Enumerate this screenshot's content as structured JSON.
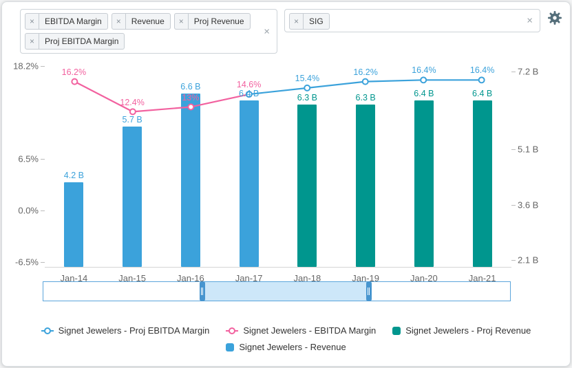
{
  "toolbar": {
    "metric_tags": [
      "EBITDA Margin",
      "Revenue",
      "Proj Revenue",
      "Proj EBITDA Margin"
    ],
    "ticker_tags": [
      "SIG"
    ],
    "tag_remove_icon": "×",
    "clear_icon": "×"
  },
  "chart_data": {
    "type": "combo-bar-line",
    "categories": [
      "Jan-14",
      "Jan-15",
      "Jan-16",
      "Jan-17",
      "Jan-18",
      "Jan-19",
      "Jan-20",
      "Jan-21"
    ],
    "left_axis": {
      "unit": "%",
      "labels": [
        "18.2%",
        "6.5%",
        "0.0%",
        "-6.5%"
      ],
      "values": [
        18.2,
        6.5,
        0.0,
        -6.5
      ],
      "min": -7.2,
      "max": 18.6
    },
    "right_axis": {
      "unit": "B",
      "labels": [
        "7.2 B",
        "5.1 B",
        "3.6 B",
        "2.1 B"
      ],
      "values": [
        7.2,
        5.1,
        3.6,
        2.1
      ],
      "min": 1.9,
      "max": 7.45
    },
    "series": [
      {
        "name": "Signet Jewelers - Revenue",
        "type": "bar",
        "color": "#3BA2DB",
        "start": 0,
        "values": [
          4.2,
          5.7,
          6.6,
          6.4
        ],
        "labels": [
          "4.2 B",
          "5.7 B",
          "6.6 B",
          "6.4 B"
        ]
      },
      {
        "name": "Signet Jewelers - Proj Revenue",
        "type": "bar",
        "color": "#00968E",
        "start": 4,
        "values": [
          6.3,
          6.3,
          6.4,
          6.4
        ],
        "labels": [
          "6.3 B",
          "6.3 B",
          "6.4 B",
          "6.4 B"
        ]
      },
      {
        "name": "Signet Jewelers - EBITDA Margin",
        "type": "line",
        "color": "#F2619F",
        "start": 0,
        "values": [
          16.2,
          12.4,
          13.0,
          14.6
        ],
        "labels": [
          "16.2%",
          "12.4%",
          "13%",
          "14.6%"
        ]
      },
      {
        "name": "Signet Jewelers - Proj EBITDA Margin",
        "type": "line",
        "color": "#3BA2DB",
        "start": 3,
        "values": [
          14.6,
          15.4,
          16.2,
          16.4,
          16.4
        ],
        "labels": [
          null,
          "15.4%",
          "16.2%",
          "16.4%",
          "16.4%"
        ]
      }
    ]
  },
  "navigator": {
    "range_start": 0.34,
    "range_end": 0.697,
    "border_color": "#5BA5DB",
    "fill_color": "#CDE7F9",
    "handle_color": "#4795CF"
  },
  "legend": {
    "items": [
      {
        "label": "Signet Jewelers - Proj EBITDA Margin",
        "marker": "line",
        "color": "#3BA2DB"
      },
      {
        "label": "Signet Jewelers - EBITDA Margin",
        "marker": "line",
        "color": "#F2619F"
      },
      {
        "label": "Signet Jewelers - Proj Revenue",
        "marker": "square",
        "color": "#00968E"
      },
      {
        "label": "Signet Jewelers - Revenue",
        "marker": "square",
        "color": "#3BA2DB"
      }
    ]
  }
}
